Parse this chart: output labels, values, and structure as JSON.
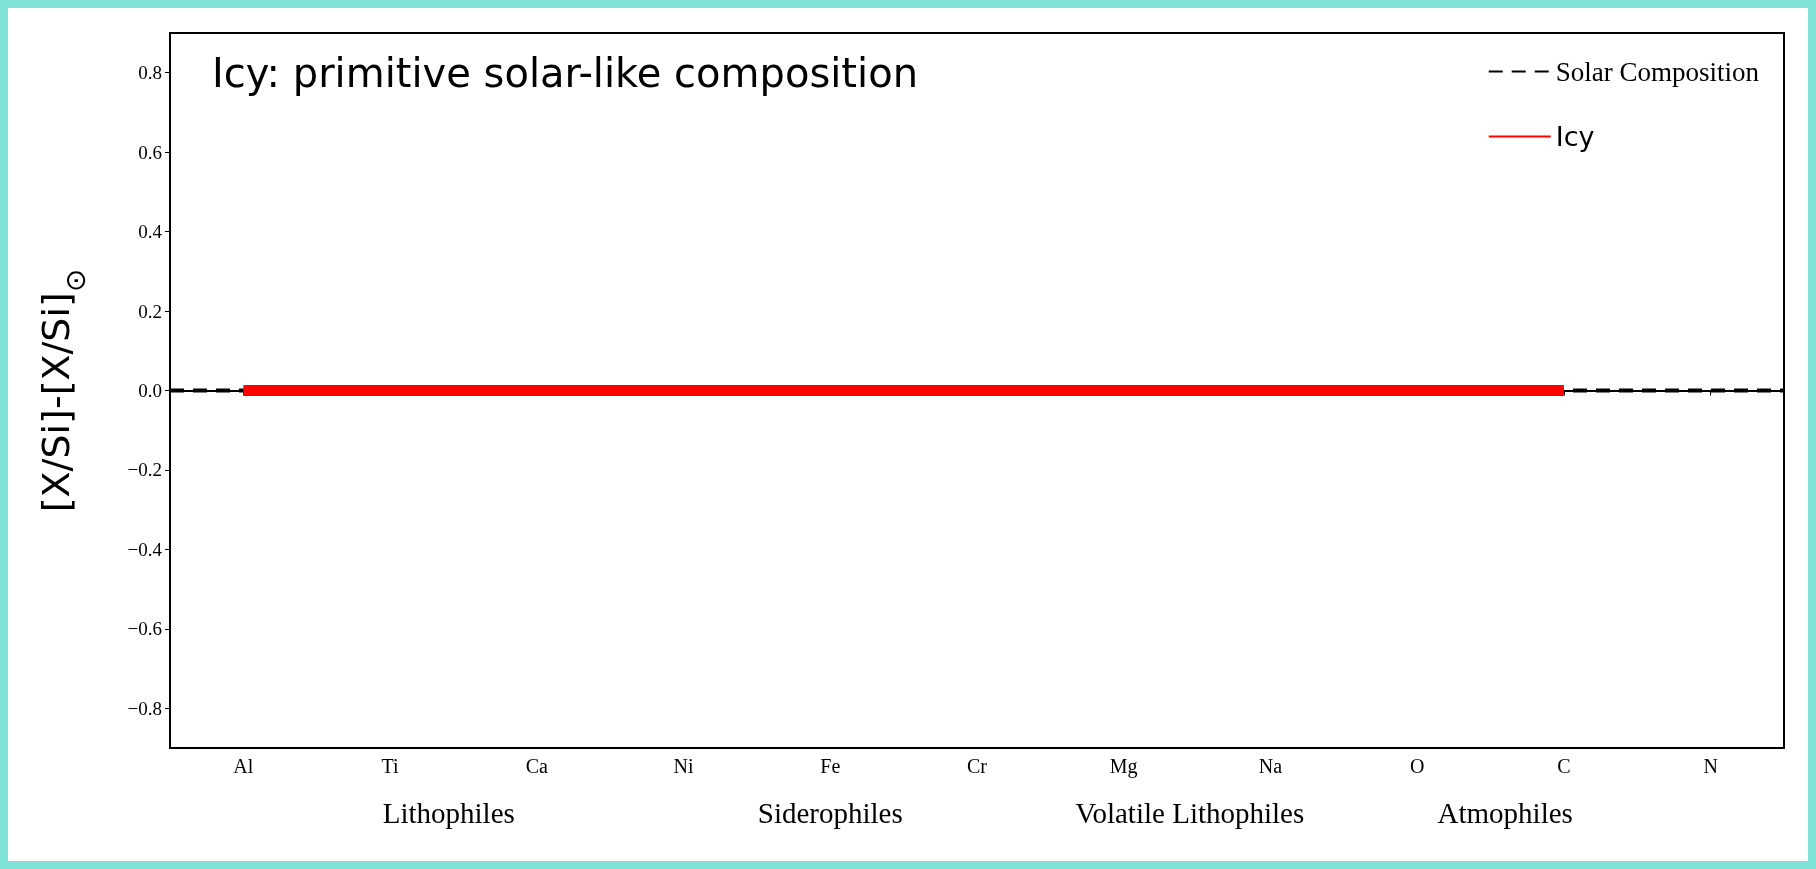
{
  "chart_data": {
    "type": "line",
    "title": "Icy: primitive solar-like composition",
    "ylabel": "[X/Si]-[X/Si]$_{⊙}$",
    "categories": [
      "Al",
      "Ti",
      "Ca",
      "Ni",
      "Fe",
      "Cr",
      "Mg",
      "Na",
      "O",
      "C",
      "N"
    ],
    "series": [
      {
        "name": "Icy",
        "color": "#ff0000",
        "values": [
          0,
          0,
          0,
          0,
          0,
          0,
          0,
          0,
          0,
          0,
          null
        ]
      }
    ],
    "ref_lines": [
      {
        "axis": "y",
        "value": 0,
        "label": "Solar Composition",
        "color": "#000000",
        "line_style": "dashed"
      }
    ],
    "ylim": [
      -0.9,
      0.9
    ],
    "yticks": [
      {
        "value": -0.8,
        "label": "−0.8"
      },
      {
        "value": -0.6,
        "label": "−0.6"
      },
      {
        "value": -0.4,
        "label": "−0.4"
      },
      {
        "value": -0.2,
        "label": "−0.2"
      },
      {
        "value": 0,
        "label": "0.0"
      },
      {
        "value": 0.2,
        "label": "0.2"
      },
      {
        "value": 0.4,
        "label": "0.4"
      },
      {
        "value": 0.6,
        "label": "0.6"
      },
      {
        "value": 0.8,
        "label": "0.8"
      }
    ],
    "annotations": [
      "Lithophiles",
      "Siderophiles",
      "Volatile Lithophiles",
      "Atmophiles"
    ],
    "legend": "top right",
    "grid": false,
    "marker": "none",
    "line_style": "solid"
  }
}
